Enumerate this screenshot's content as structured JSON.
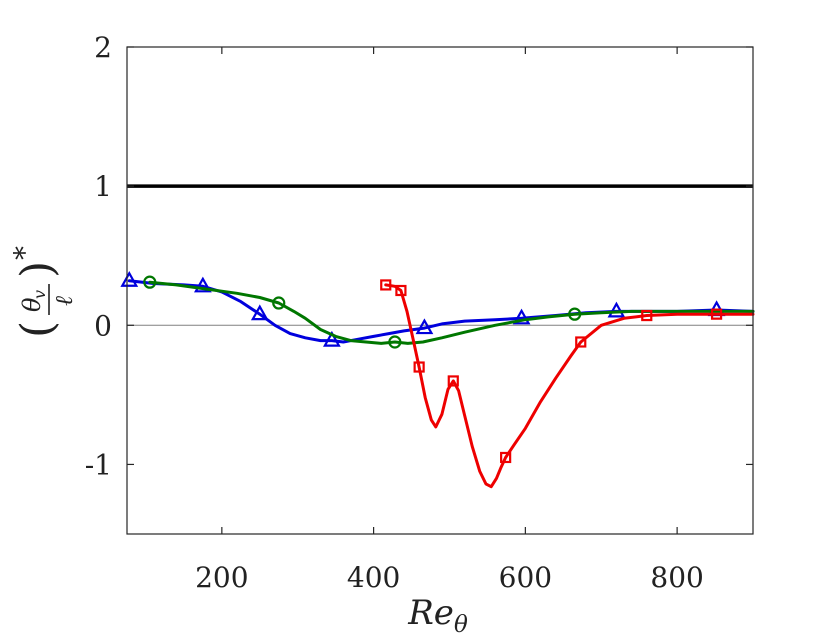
{
  "chart_data": {
    "type": "line",
    "title": "",
    "xlabel": "Re",
    "xlabel_sub": "θ",
    "ylabel": "(θv/ℓ)*",
    "ylabel_parts": {
      "open": "(",
      "num": "θ",
      "num_sub": "v",
      "den": "ℓ",
      "close": ")",
      "sup": "*"
    },
    "xlim": [
      75,
      900
    ],
    "ylim": [
      -1.5,
      2
    ],
    "xticks": [
      200,
      400,
      600,
      800
    ],
    "xtick_labels": [
      "200",
      "400",
      "600",
      "800"
    ],
    "yticks": [
      -1,
      0,
      1,
      2
    ],
    "ytick_labels": [
      "-1",
      "0",
      "1",
      "2"
    ],
    "grid": false,
    "reference_lines": [
      {
        "name": "unity",
        "y": 1,
        "color": "#000000",
        "style": "thick"
      },
      {
        "name": "zero",
        "y": 0,
        "color": "#808080",
        "style": "thin"
      }
    ],
    "series": [
      {
        "name": "blue-triangle",
        "color": "#0000dd",
        "marker": "triangle",
        "x": [
          78,
          110,
          150,
          175,
          200,
          225,
          250,
          270,
          290,
          310,
          330,
          345,
          360,
          380,
          400,
          420,
          440,
          467,
          490,
          520,
          560,
          595,
          640,
          680,
          720,
          760,
          800,
          852,
          900
        ],
        "y": [
          0.32,
          0.3,
          0.29,
          0.28,
          0.24,
          0.17,
          0.08,
          0.0,
          -0.06,
          -0.09,
          -0.11,
          -0.11,
          -0.12,
          -0.1,
          -0.08,
          -0.06,
          -0.04,
          -0.02,
          0.01,
          0.03,
          0.04,
          0.05,
          0.07,
          0.09,
          0.1,
          0.1,
          0.1,
          0.11,
          0.1
        ],
        "markers_x": [
          78,
          175,
          250,
          345,
          467,
          595,
          720,
          852
        ],
        "markers_y": [
          0.32,
          0.28,
          0.08,
          -0.11,
          -0.02,
          0.05,
          0.1,
          0.11
        ]
      },
      {
        "name": "green-circle",
        "color": "#007700",
        "marker": "circle",
        "x": [
          105,
          140,
          180,
          220,
          250,
          275,
          295,
          310,
          330,
          350,
          370,
          390,
          410,
          428,
          445,
          465,
          490,
          520,
          560,
          600,
          630,
          665,
          700,
          740,
          800,
          850,
          900
        ],
        "y": [
          0.31,
          0.29,
          0.26,
          0.23,
          0.2,
          0.16,
          0.1,
          0.05,
          -0.03,
          -0.08,
          -0.11,
          -0.12,
          -0.13,
          -0.12,
          -0.13,
          -0.12,
          -0.09,
          -0.05,
          0.0,
          0.04,
          0.06,
          0.08,
          0.09,
          0.1,
          0.1,
          0.1,
          0.1
        ],
        "markers_x": [
          105,
          275,
          428,
          665
        ],
        "markers_y": [
          0.31,
          0.16,
          -0.12,
          0.08
        ]
      },
      {
        "name": "red-square",
        "color": "#ee0000",
        "marker": "square",
        "x": [
          416,
          428,
          436,
          444,
          452,
          460,
          468,
          476,
          482,
          490,
          498,
          505,
          512,
          520,
          530,
          540,
          548,
          555,
          562,
          568,
          574,
          585,
          600,
          620,
          640,
          660,
          673,
          700,
          730,
          760,
          800,
          852,
          900
        ],
        "y": [
          0.29,
          0.28,
          0.25,
          0.1,
          -0.1,
          -0.3,
          -0.52,
          -0.68,
          -0.73,
          -0.64,
          -0.46,
          -0.4,
          -0.47,
          -0.65,
          -0.87,
          -1.05,
          -1.14,
          -1.16,
          -1.1,
          -1.02,
          -0.95,
          -0.86,
          -0.74,
          -0.55,
          -0.38,
          -0.22,
          -0.12,
          0.0,
          0.05,
          0.07,
          0.08,
          0.08,
          0.08
        ],
        "markers_x": [
          416,
          436,
          460,
          505,
          574,
          673,
          760,
          852
        ],
        "markers_y": [
          0.29,
          0.25,
          -0.3,
          -0.4,
          -0.95,
          -0.12,
          0.07,
          0.08
        ]
      }
    ]
  }
}
